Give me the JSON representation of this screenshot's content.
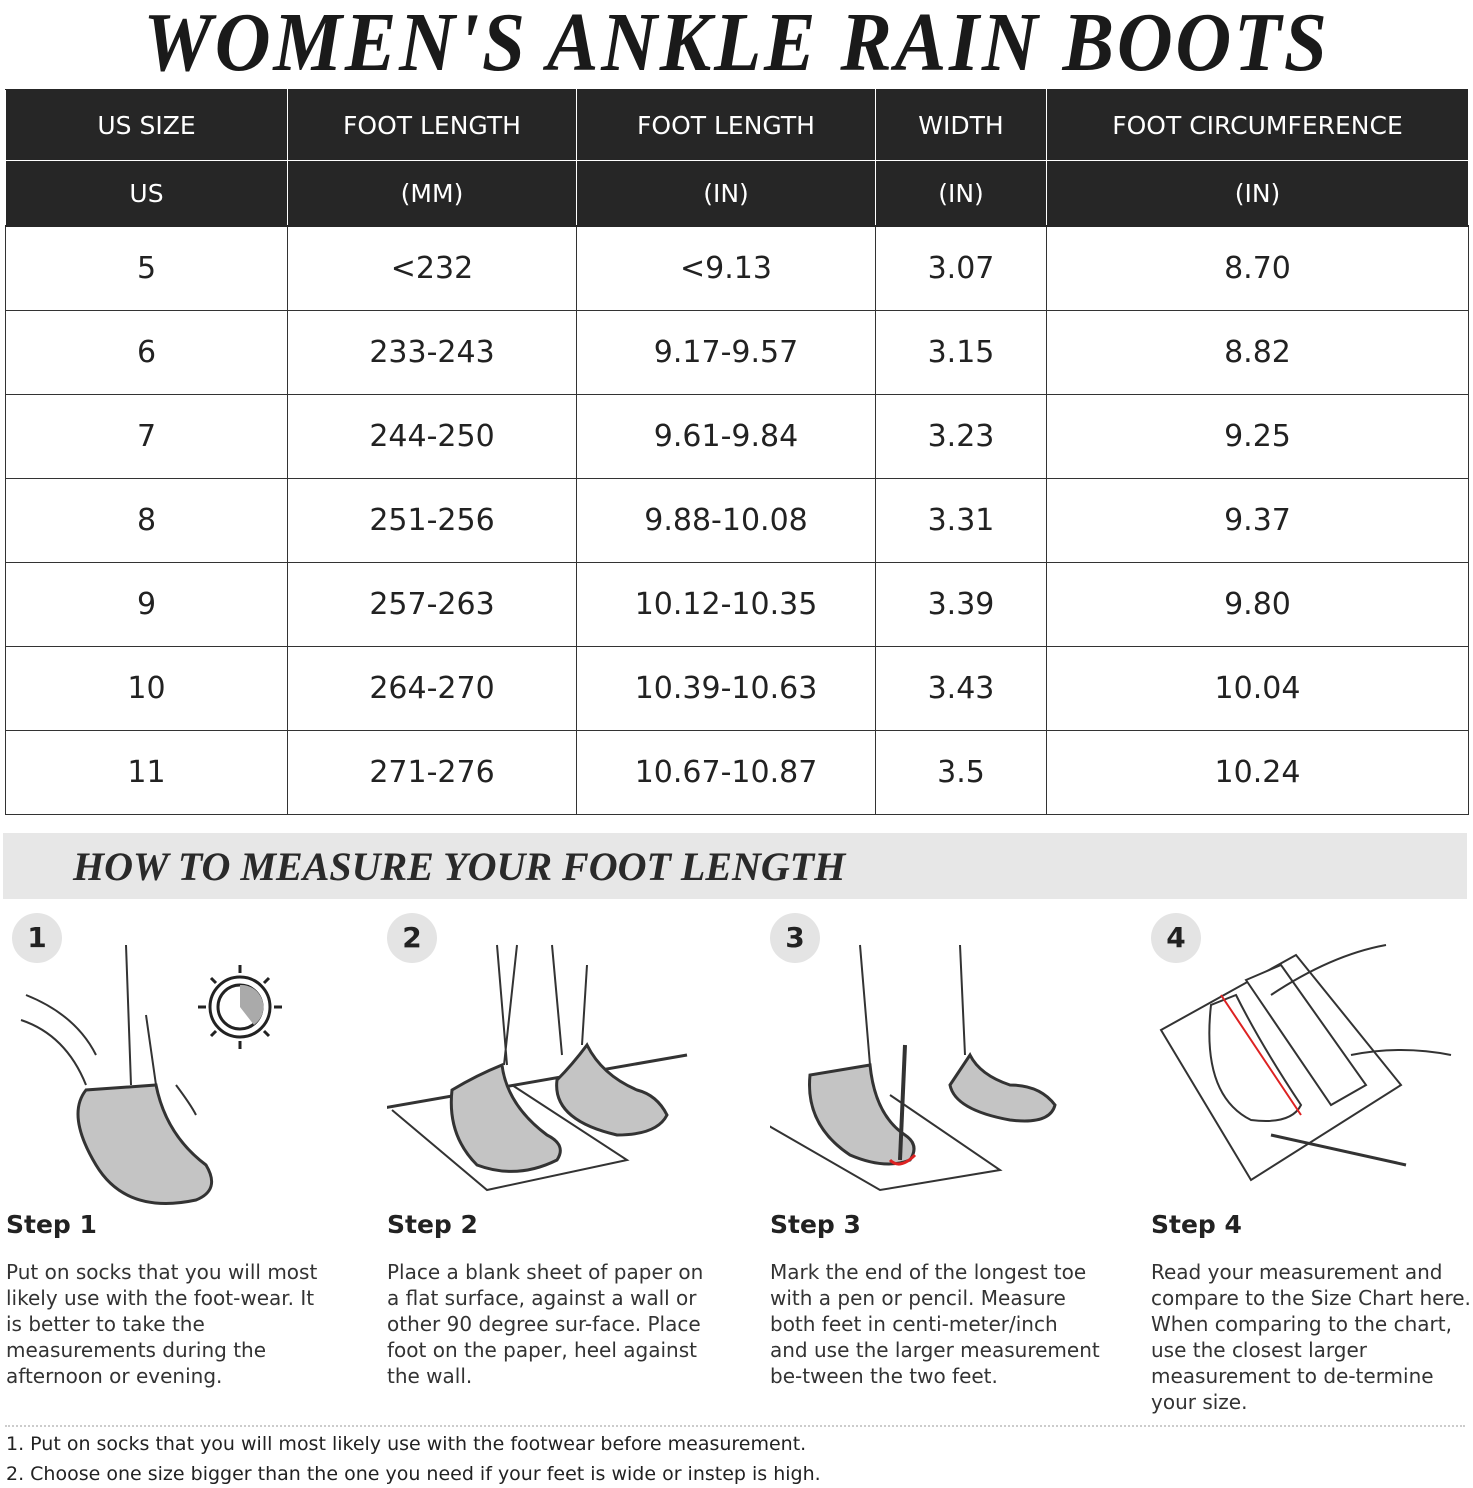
{
  "title": "WOMEN'S ANKLE RAIN BOOTS",
  "table": {
    "header_row1": [
      "US SIZE",
      "FOOT LENGTH",
      "FOOT LENGTH",
      "WIDTH",
      "FOOT CIRCUMFERENCE"
    ],
    "header_row2": [
      "US",
      "(MM)",
      "(IN)",
      "(IN)",
      "(IN)"
    ],
    "rows": [
      [
        "5",
        "<232",
        "<9.13",
        "3.07",
        "8.70"
      ],
      [
        "6",
        "233-243",
        "9.17-9.57",
        "3.15",
        "8.82"
      ],
      [
        "7",
        "244-250",
        "9.61-9.84",
        "3.23",
        "9.25"
      ],
      [
        "8",
        "251-256",
        "9.88-10.08",
        "3.31",
        "9.37"
      ],
      [
        "9",
        "257-263",
        "10.12-10.35",
        "3.39",
        "9.80"
      ],
      [
        "10",
        "264-270",
        "10.39-10.63",
        "3.43",
        "10.04"
      ],
      [
        "11",
        "271-276",
        "10.67-10.87",
        "3.5",
        "10.24"
      ]
    ]
  },
  "measure": {
    "heading": "HOW TO MEASURE YOUR FOOT LENGTH",
    "steps": [
      {
        "number": "1",
        "title": "Step 1",
        "text": "Put on socks that you will most likely use with the foot-wear. It is better to take the measurements during the afternoon or evening."
      },
      {
        "number": "2",
        "title": "Step 2",
        "text": "Place a blank sheet of paper on a flat surface, against a wall or other 90 degree sur-face. Place foot on the paper, heel against the wall."
      },
      {
        "number": "3",
        "title": "Step 3",
        "text": "Mark the end of the longest toe with a pen or pencil. Measure both feet in centi-meter/inch and use the larger measurement be-tween the two feet."
      },
      {
        "number": "4",
        "title": "Step 4",
        "text": "Read your measurement and compare to the Size Chart here. When comparing to the chart, use the closest larger measurement to de-termine your size."
      }
    ]
  },
  "notes": [
    "1. Put on socks that you will most likely use with the footwear before measurement.",
    "2. Choose one size bigger than the one you need if your feet is wide or instep is high."
  ],
  "colors": {
    "header_bg": "#262626",
    "banner_bg": "#e7e7e7",
    "sock_gray": "#c4c4c4",
    "mark_red": "#d22"
  }
}
